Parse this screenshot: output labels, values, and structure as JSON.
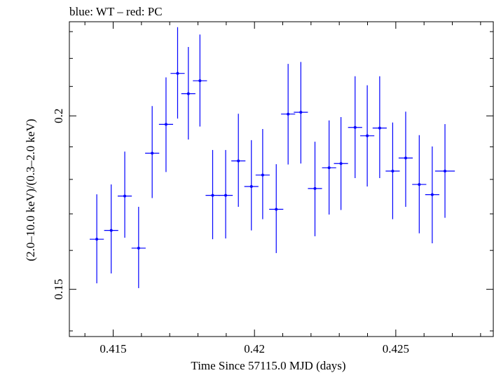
{
  "chart_data": {
    "type": "scatter",
    "title": "blue: WT – red: PC",
    "xlabel": "Time Since 57115.0 MJD (days)",
    "ylabel": "(2.0–10.0 keV)/(0.3–2.0 keV)",
    "xlim": [
      0.41345,
      0.42845
    ],
    "ylim": [
      0.1387,
      0.2338
    ],
    "yscale": "log",
    "x_ticks": [
      0.415,
      0.42,
      0.425
    ],
    "x_tick_labels": [
      "0.415",
      "0.42",
      "0.425"
    ],
    "y_ticks": [
      0.15,
      0.2
    ],
    "y_tick_labels": [
      "0.15",
      "0.2"
    ],
    "grid": false,
    "series": [
      {
        "name": "WT",
        "color": "#0000ff",
        "points": [
          {
            "x": 0.41442,
            "y": 0.163,
            "xerr": 0.00025,
            "ylo": 0.1515,
            "yhi": 0.1756
          },
          {
            "x": 0.41493,
            "y": 0.1654,
            "xerr": 0.00025,
            "ylo": 0.154,
            "yhi": 0.1785
          },
          {
            "x": 0.41541,
            "y": 0.1751,
            "xerr": 0.00025,
            "ylo": 0.1634,
            "yhi": 0.1885
          },
          {
            "x": 0.4159,
            "y": 0.1606,
            "xerr": 0.00025,
            "ylo": 0.1503,
            "yhi": 0.172
          },
          {
            "x": 0.41638,
            "y": 0.188,
            "xerr": 0.00025,
            "ylo": 0.1745,
            "yhi": 0.2033
          },
          {
            "x": 0.41687,
            "y": 0.1972,
            "xerr": 0.00025,
            "ylo": 0.1822,
            "yhi": 0.2132
          },
          {
            "x": 0.41728,
            "y": 0.2146,
            "xerr": 0.00025,
            "ylo": 0.1991,
            "yhi": 0.2317
          },
          {
            "x": 0.41766,
            "y": 0.2075,
            "xerr": 0.00025,
            "ylo": 0.1923,
            "yhi": 0.2242
          },
          {
            "x": 0.41807,
            "y": 0.212,
            "xerr": 0.00025,
            "ylo": 0.1965,
            "yhi": 0.2289
          },
          {
            "x": 0.41852,
            "y": 0.1753,
            "xerr": 0.00025,
            "ylo": 0.163,
            "yhi": 0.189
          },
          {
            "x": 0.41898,
            "y": 0.1753,
            "xerr": 0.00025,
            "ylo": 0.1632,
            "yhi": 0.189
          },
          {
            "x": 0.41943,
            "y": 0.1856,
            "xerr": 0.00025,
            "ylo": 0.172,
            "yhi": 0.2007
          },
          {
            "x": 0.41989,
            "y": 0.1779,
            "xerr": 0.00025,
            "ylo": 0.1654,
            "yhi": 0.1921
          },
          {
            "x": 0.42029,
            "y": 0.1813,
            "xerr": 0.00025,
            "ylo": 0.1685,
            "yhi": 0.1957
          },
          {
            "x": 0.42077,
            "y": 0.1713,
            "xerr": 0.00025,
            "ylo": 0.1593,
            "yhi": 0.1846
          },
          {
            "x": 0.42119,
            "y": 0.2006,
            "xerr": 0.00025,
            "ylo": 0.1845,
            "yhi": 0.218
          },
          {
            "x": 0.42164,
            "y": 0.2012,
            "xerr": 0.00025,
            "ylo": 0.1848,
            "yhi": 0.2187
          },
          {
            "x": 0.42214,
            "y": 0.1773,
            "xerr": 0.00025,
            "ylo": 0.1638,
            "yhi": 0.1916
          },
          {
            "x": 0.42264,
            "y": 0.1835,
            "xerr": 0.00025,
            "ylo": 0.1698,
            "yhi": 0.1985
          },
          {
            "x": 0.42306,
            "y": 0.1848,
            "xerr": 0.00025,
            "ylo": 0.1711,
            "yhi": 0.1996
          },
          {
            "x": 0.42356,
            "y": 0.1962,
            "xerr": 0.00025,
            "ylo": 0.1804,
            "yhi": 0.2136
          },
          {
            "x": 0.42399,
            "y": 0.1935,
            "xerr": 0.00025,
            "ylo": 0.1779,
            "yhi": 0.2104
          },
          {
            "x": 0.42443,
            "y": 0.196,
            "xerr": 0.00025,
            "ylo": 0.1804,
            "yhi": 0.2136
          },
          {
            "x": 0.42489,
            "y": 0.1825,
            "xerr": 0.00025,
            "ylo": 0.1685,
            "yhi": 0.1978
          },
          {
            "x": 0.42535,
            "y": 0.1865,
            "xerr": 0.00025,
            "ylo": 0.172,
            "yhi": 0.2014
          },
          {
            "x": 0.42583,
            "y": 0.1785,
            "xerr": 0.00025,
            "ylo": 0.1646,
            "yhi": 0.1937
          },
          {
            "x": 0.42629,
            "y": 0.1755,
            "xerr": 0.00025,
            "ylo": 0.1619,
            "yhi": 0.1901
          },
          {
            "x": 0.42674,
            "y": 0.1825,
            "xerr": 0.00035,
            "ylo": 0.1689,
            "yhi": 0.1973
          }
        ]
      }
    ]
  }
}
